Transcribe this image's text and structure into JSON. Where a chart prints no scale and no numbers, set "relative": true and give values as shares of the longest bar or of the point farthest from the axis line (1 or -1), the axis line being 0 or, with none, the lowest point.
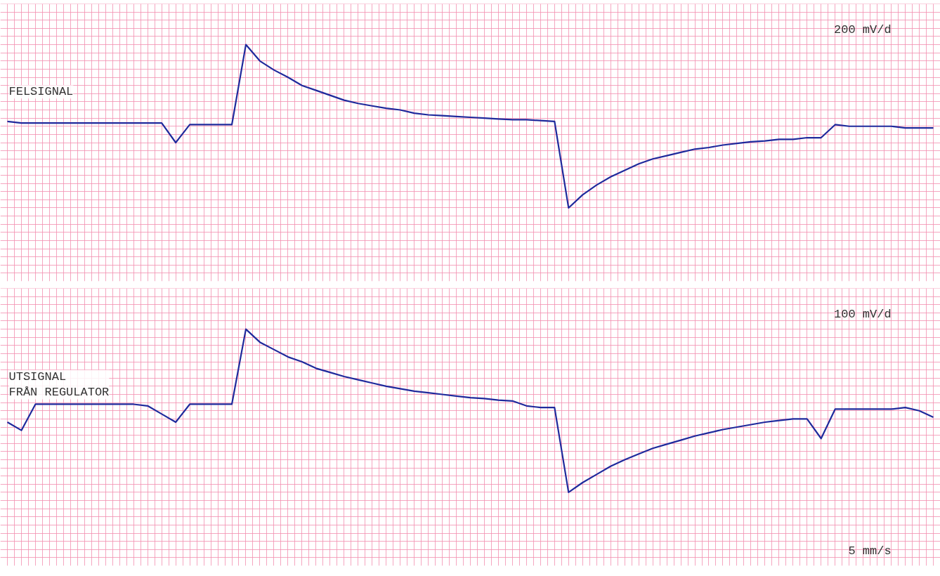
{
  "chart_data": [
    {
      "type": "line",
      "relative": true,
      "grid": true,
      "categories": [
        null,
        null,
        null,
        null,
        null,
        null,
        null,
        null,
        null,
        null,
        null,
        null,
        null,
        null,
        null,
        null,
        null,
        null,
        null,
        null,
        null,
        null,
        null,
        null,
        null,
        null,
        null,
        null,
        null,
        null,
        null,
        null,
        null,
        null,
        null,
        null,
        null,
        null,
        null,
        null,
        null,
        null,
        null,
        null,
        null,
        null,
        null,
        null,
        null,
        null,
        null,
        null,
        null,
        null,
        null,
        null,
        null,
        null,
        null,
        null,
        null,
        null,
        null,
        null,
        null,
        null,
        null
      ],
      "series": [
        {
          "name": "FELSIGNAL",
          "color": "#1f2a9c",
          "values": [
            0.53,
            0.52,
            0.52,
            0.52,
            0.52,
            0.52,
            0.52,
            0.52,
            0.52,
            0.52,
            0.52,
            0.52,
            0.4,
            0.51,
            0.51,
            0.51,
            0.51,
            1.0,
            0.9,
            0.845,
            0.8,
            0.75,
            0.72,
            0.69,
            0.66,
            0.64,
            0.625,
            0.61,
            0.6,
            0.58,
            0.57,
            0.565,
            0.56,
            0.555,
            0.55,
            0.545,
            0.54,
            0.54,
            0.535,
            0.53,
            0,
            0.08,
            0.14,
            0.19,
            0.23,
            0.27,
            0.3,
            0.32,
            0.34,
            0.36,
            0.37,
            0.385,
            0.395,
            0.405,
            0.41,
            0.42,
            0.42,
            0.43,
            0.43,
            0.51,
            0.5,
            0.5,
            0.5,
            0.5,
            0.49,
            0.49,
            0.49
          ]
        }
      ],
      "annotations": [
        "200 mV/d"
      ]
    },
    {
      "type": "line",
      "relative": true,
      "grid": true,
      "categories": [
        null,
        null,
        null,
        null,
        null,
        null,
        null,
        null,
        null,
        null,
        null,
        null,
        null,
        null,
        null,
        null,
        null,
        null,
        null,
        null,
        null,
        null,
        null,
        null,
        null,
        null,
        null,
        null,
        null,
        null,
        null,
        null,
        null,
        null,
        null,
        null,
        null,
        null,
        null,
        null,
        null,
        null,
        null,
        null,
        null,
        null,
        null,
        null,
        null,
        null,
        null,
        null,
        null,
        null,
        null,
        null,
        null,
        null,
        null,
        null,
        null,
        null,
        null,
        null,
        null,
        null,
        null
      ],
      "series": [
        {
          "name": "UTSIGNAL\nFRÅN REGULATOR",
          "color": "#1f2a9c",
          "values": [
            0.43,
            0.38,
            0.54,
            0.54,
            0.54,
            0.54,
            0.54,
            0.54,
            0.54,
            0.54,
            0.53,
            0.48,
            0.43,
            0.54,
            0.54,
            0.54,
            0.54,
            1.0,
            0.92,
            0.875,
            0.83,
            0.8,
            0.76,
            0.735,
            0.71,
            0.69,
            0.67,
            0.65,
            0.635,
            0.62,
            0.61,
            0.6,
            0.59,
            0.58,
            0.575,
            0.565,
            0.56,
            0.53,
            0.52,
            0.52,
            0,
            0.06,
            0.11,
            0.16,
            0.2,
            0.235,
            0.27,
            0.295,
            0.32,
            0.345,
            0.365,
            0.385,
            0.4,
            0.415,
            0.43,
            0.44,
            0.45,
            0.45,
            0.33,
            0.51,
            0.51,
            0.51,
            0.51,
            0.51,
            0.52,
            0.5,
            0.46
          ]
        }
      ],
      "annotations": [
        "100 mV/d",
        "5 mm/s"
      ]
    }
  ]
}
